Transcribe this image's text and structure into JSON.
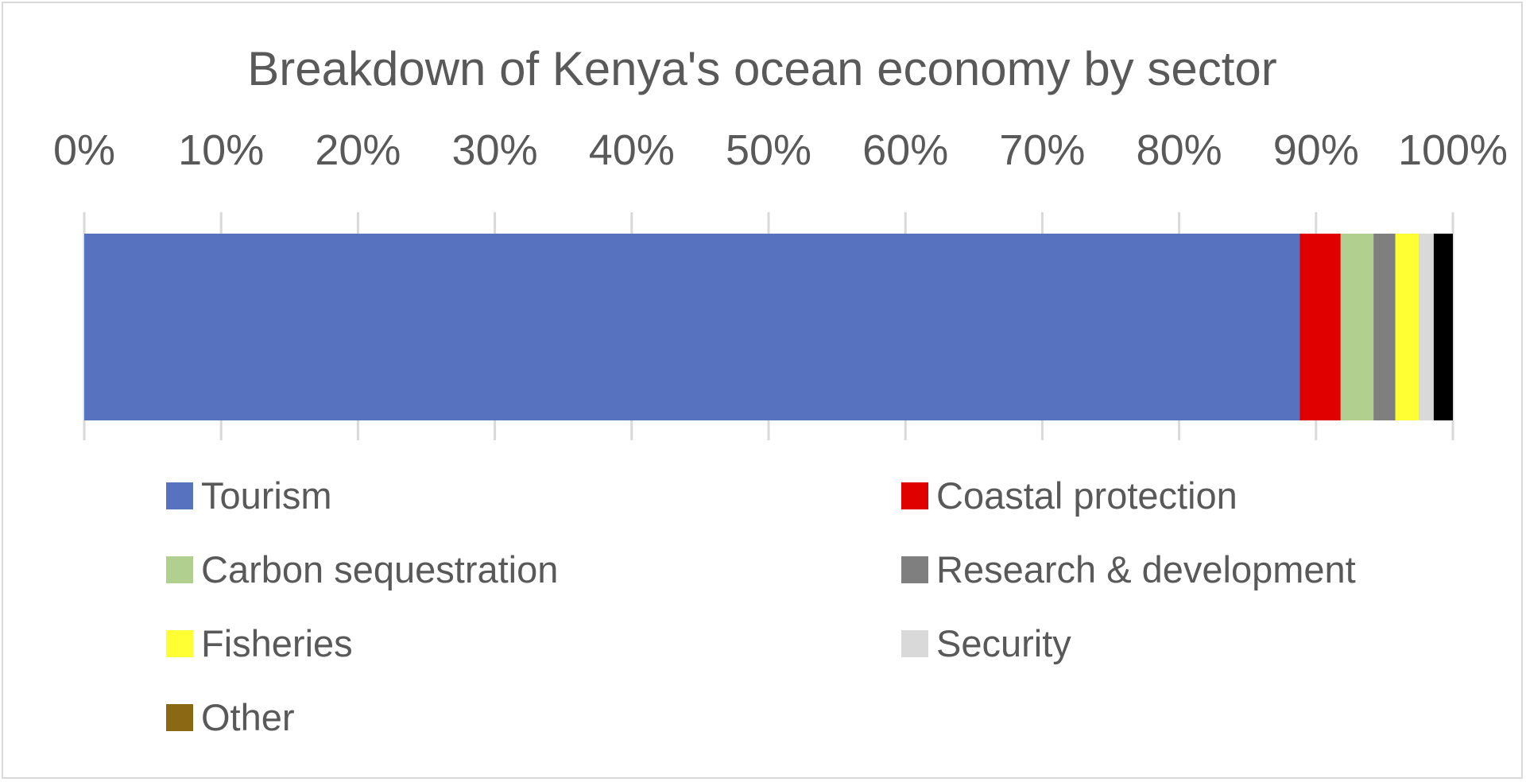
{
  "chart_data": {
    "type": "bar",
    "orientation": "horizontal",
    "stacked": "100%",
    "title": "Breakdown of Kenya's ocean economy by sector",
    "xlabel": "",
    "ylabel": "",
    "xlim": [
      0,
      100
    ],
    "x_tick_labels": [
      "0%",
      "10%",
      "20%",
      "30%",
      "40%",
      "50%",
      "60%",
      "70%",
      "80%",
      "90%",
      "100%"
    ],
    "grid": true,
    "legend_position": "bottom",
    "series": [
      {
        "name": "Tourism",
        "value": 88.8,
        "color": "#5773c0"
      },
      {
        "name": "Coastal protection",
        "value": 3.0,
        "color": "#e00000"
      },
      {
        "name": "Carbon sequestration",
        "value": 2.4,
        "color": "#b1d08f"
      },
      {
        "name": "Research & development",
        "value": 1.6,
        "color": "#7f7f7f"
      },
      {
        "name": "Fisheries",
        "value": 1.7,
        "color": "#ffff33"
      },
      {
        "name": "Security",
        "value": 1.1,
        "color": "#d9d9d9"
      },
      {
        "name": "Other",
        "value": 1.4,
        "color": "#000000",
        "legend_color": "#8b6914"
      }
    ]
  }
}
